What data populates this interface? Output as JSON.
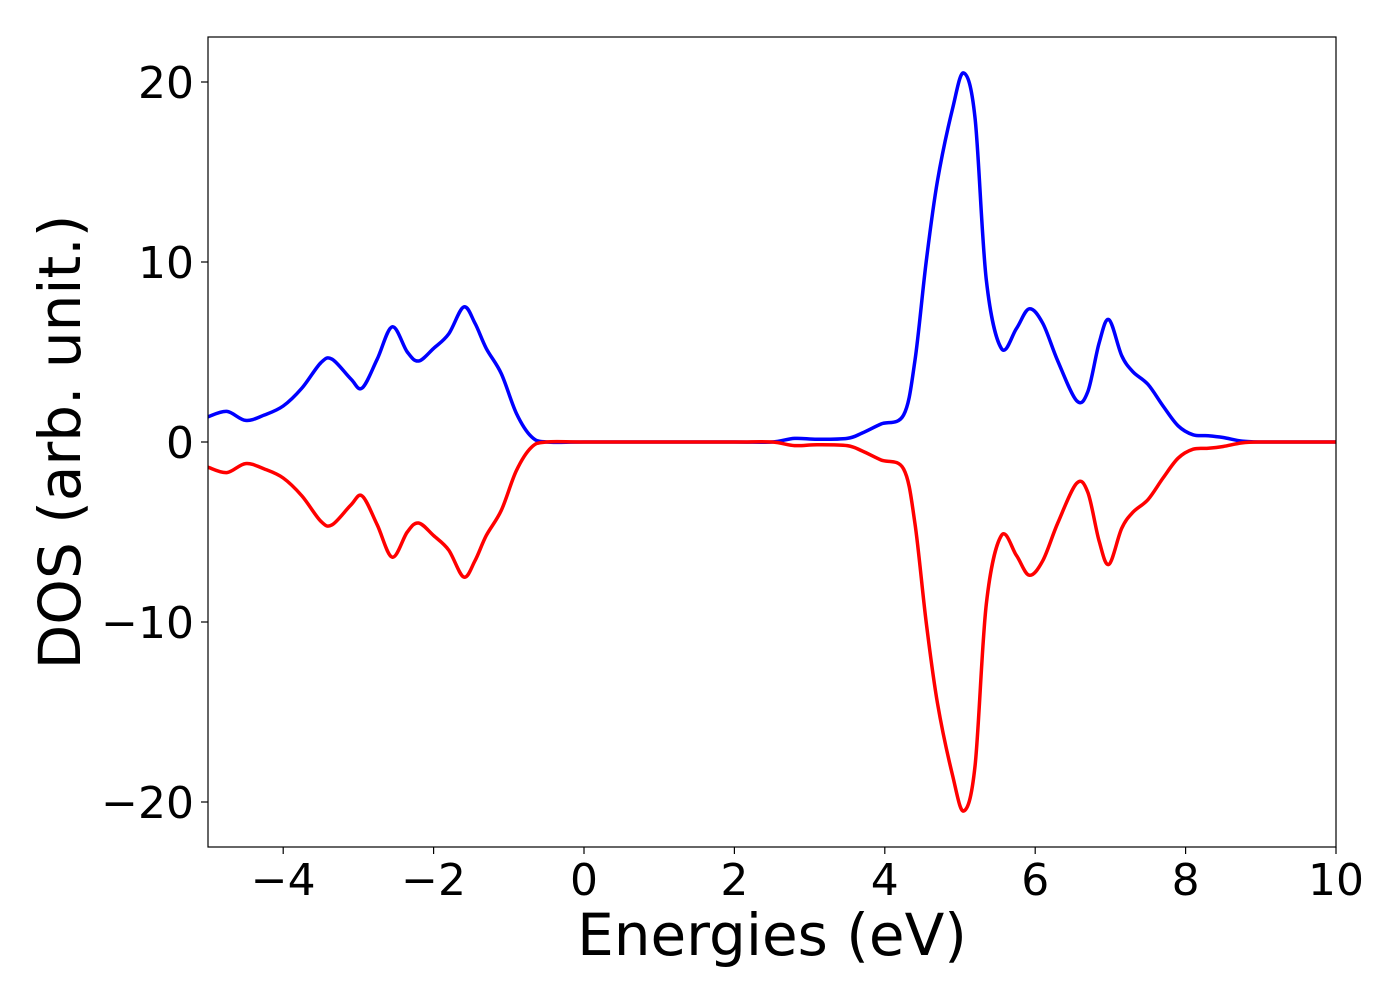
{
  "chart_data": {
    "type": "line",
    "title": "",
    "xlabel": "Energies (eV)",
    "ylabel": "DOS (arb. unit.)",
    "xlim": [
      -5,
      10
    ],
    "ylim": [
      -22.5,
      22.5
    ],
    "xticks": [
      -4,
      -2,
      0,
      2,
      4,
      6,
      8,
      10
    ],
    "xtick_labels": [
      "−4",
      "−2",
      "0",
      "2",
      "4",
      "6",
      "8",
      "10"
    ],
    "yticks": [
      -20,
      -10,
      0,
      10,
      20
    ],
    "ytick_labels": [
      "−20",
      "−10",
      "0",
      "10",
      "20"
    ],
    "grid": false,
    "legend": "none",
    "colors": {
      "up": "#0000ff",
      "down": "#ff0000",
      "axes": "#000000",
      "background": "#ffffff"
    },
    "series": [
      {
        "color": "#0000ff",
        "x": [
          -5.0,
          -4.75,
          -4.5,
          -4.25,
          -4.0,
          -3.75,
          -3.5,
          -3.35,
          -3.1,
          -2.95,
          -2.75,
          -2.55,
          -2.35,
          -2.2,
          -2.0,
          -1.8,
          -1.6,
          -1.45,
          -1.3,
          -1.1,
          -0.9,
          -0.7,
          -0.5,
          0.0,
          1.0,
          2.0,
          2.5,
          2.8,
          3.1,
          3.5,
          3.7,
          3.95,
          4.25,
          4.4,
          4.55,
          4.7,
          4.9,
          5.05,
          5.2,
          5.35,
          5.55,
          5.75,
          5.92,
          6.1,
          6.3,
          6.55,
          6.7,
          6.85,
          6.98,
          7.15,
          7.3,
          7.5,
          7.7,
          7.9,
          8.1,
          8.3,
          8.5,
          8.75,
          9.0,
          9.5,
          10.0
        ],
        "y": [
          1.4,
          1.7,
          1.2,
          1.5,
          2.0,
          3.0,
          4.4,
          4.6,
          3.5,
          3.0,
          4.6,
          6.4,
          5.0,
          4.5,
          5.2,
          6.0,
          7.5,
          6.6,
          5.2,
          3.8,
          1.6,
          0.3,
          0.0,
          0.0,
          0.0,
          0.0,
          0.0,
          0.2,
          0.15,
          0.2,
          0.5,
          1.0,
          1.5,
          4.5,
          10.0,
          14.5,
          18.5,
          20.5,
          18.0,
          9.0,
          5.2,
          6.3,
          7.4,
          6.6,
          4.5,
          2.3,
          2.8,
          5.5,
          6.8,
          4.8,
          3.9,
          3.2,
          2.0,
          0.9,
          0.4,
          0.35,
          0.25,
          0.05,
          0.0,
          0.0,
          0.0
        ]
      },
      {
        "color": "#ff0000",
        "x": [
          -5.0,
          -4.75,
          -4.5,
          -4.25,
          -4.0,
          -3.75,
          -3.5,
          -3.35,
          -3.1,
          -2.95,
          -2.75,
          -2.55,
          -2.35,
          -2.2,
          -2.0,
          -1.8,
          -1.6,
          -1.45,
          -1.3,
          -1.1,
          -0.9,
          -0.7,
          -0.5,
          0.0,
          1.0,
          2.0,
          2.5,
          2.8,
          3.1,
          3.5,
          3.7,
          3.95,
          4.25,
          4.4,
          4.55,
          4.7,
          4.9,
          5.05,
          5.2,
          5.35,
          5.55,
          5.75,
          5.92,
          6.1,
          6.3,
          6.55,
          6.7,
          6.85,
          6.98,
          7.15,
          7.3,
          7.5,
          7.7,
          7.9,
          8.1,
          8.3,
          8.5,
          8.75,
          9.0,
          9.5,
          10.0
        ],
        "y": [
          -1.4,
          -1.7,
          -1.2,
          -1.5,
          -2.0,
          -3.0,
          -4.4,
          -4.6,
          -3.5,
          -3.0,
          -4.6,
          -6.4,
          -5.0,
          -4.5,
          -5.2,
          -6.0,
          -7.5,
          -6.6,
          -5.2,
          -3.8,
          -1.6,
          -0.3,
          0.0,
          0.0,
          0.0,
          0.0,
          0.0,
          -0.2,
          -0.15,
          -0.2,
          -0.5,
          -1.0,
          -1.5,
          -4.5,
          -10.0,
          -14.5,
          -18.5,
          -20.5,
          -18.0,
          -9.0,
          -5.2,
          -6.3,
          -7.4,
          -6.6,
          -4.5,
          -2.3,
          -2.8,
          -5.5,
          -6.8,
          -4.8,
          -3.9,
          -3.2,
          -2.0,
          -0.9,
          -0.4,
          -0.35,
          -0.25,
          -0.05,
          0.0,
          0.0,
          0.0
        ]
      }
    ]
  }
}
